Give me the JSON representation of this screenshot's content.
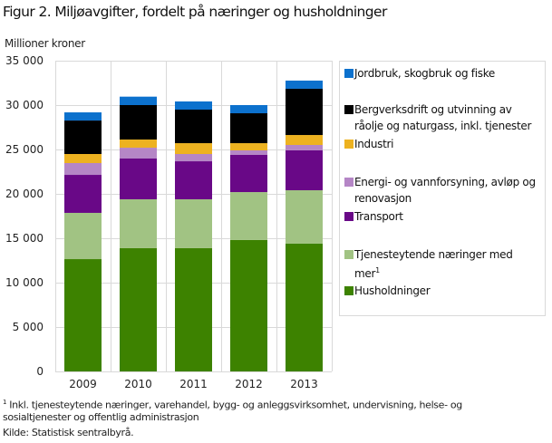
{
  "title": "Figur 2. Miljøavgifter, fordelt på næringer og husholdninger",
  "chart_data": {
    "type": "bar",
    "stacked": true,
    "title": "Figur 2. Miljøavgifter, fordelt på næringer og husholdninger",
    "ylabel": "Millioner  kroner",
    "xlabel": "",
    "ylim": [
      0,
      35000
    ],
    "yticks": [
      0,
      5000,
      10000,
      15000,
      20000,
      25000,
      30000,
      35000
    ],
    "ytick_labels": [
      "0",
      "5 000",
      "10 000",
      "15 000",
      "20 000",
      "25 000",
      "30 000",
      "35 000"
    ],
    "grid": true,
    "legend_position": "right",
    "categories": [
      "2009",
      "2010",
      "2011",
      "2012",
      "2013"
    ],
    "series": [
      {
        "name": "Husholdninger",
        "color": "#3d8200",
        "values": [
          12650,
          13880,
          13880,
          14800,
          14390
        ]
      },
      {
        "name": "Tjenesteytende  næringer med mer",
        "footnote_mark": "1",
        "color": "#a1c383",
        "values": [
          5210,
          5510,
          5510,
          5400,
          6020
        ]
      },
      {
        "name": "Transport",
        "color": "#690887",
        "values": [
          4280,
          4590,
          4280,
          4190,
          4490
        ]
      },
      {
        "name": "Energi- og vannforsyning, avløp og renovasjon",
        "color": "#b586c6",
        "values": [
          1330,
          1220,
          820,
          510,
          610
        ]
      },
      {
        "name": "Industri",
        "color": "#edb220",
        "values": [
          1020,
          920,
          1220,
          810,
          1120
        ]
      },
      {
        "name": "Bergverksdrift og utvinning av råolje og naturgass, inkl. tjenester",
        "color": "#000000",
        "values": [
          3770,
          3880,
          3780,
          3370,
          5210
        ]
      },
      {
        "name": "Jordbruk, skogbruk og fiske",
        "color": "#0c71cd",
        "values": [
          920,
          950,
          920,
          920,
          920
        ]
      }
    ],
    "legend_order": [
      6,
      5,
      4,
      3,
      2,
      1,
      0
    ]
  },
  "footnote": {
    "mark": "1",
    "line1": " Inkl. tjenesteytende næringer, varehandel, bygg- og anleggsvirksomhet, undervisning, helse- og",
    "line2": "sosialtjenester og offentlig administrasjon"
  },
  "source": "Kilde: Statistisk sentralbyrå."
}
